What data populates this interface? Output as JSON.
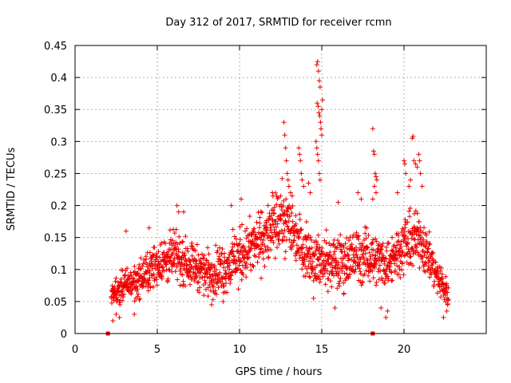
{
  "chart_data": {
    "type": "scatter",
    "title": "Day 312 of 2017, SRMTID for receiver rcmn",
    "xlabel": "GPS time / hours",
    "ylabel": "SRMTID / TECUs",
    "xlim": [
      0,
      25
    ],
    "ylim": [
      0,
      0.45
    ],
    "x_ticks": [
      0,
      5,
      10,
      15,
      20
    ],
    "y_ticks": [
      0,
      0.05,
      0.1,
      0.15,
      0.2,
      0.25,
      0.3,
      0.35,
      0.4,
      0.45
    ],
    "x_tick_labels": [
      "0",
      "5",
      "10",
      "15",
      "20"
    ],
    "y_tick_labels": [
      "0",
      "0.05",
      "0.1",
      "0.15",
      "0.2",
      "0.25",
      "0.3",
      "0.35",
      "0.4",
      "0.45"
    ],
    "grid": true,
    "marker": "plus",
    "color": "#ee0000",
    "envelope_hours": [
      2.2,
      3,
      4,
      5,
      6,
      7,
      8,
      9,
      10,
      11,
      12,
      12.5,
      13,
      14,
      15,
      16,
      17,
      18,
      19,
      20,
      21,
      22,
      22.7
    ],
    "envelope_median": [
      0.06,
      0.075,
      0.085,
      0.11,
      0.12,
      0.11,
      0.095,
      0.1,
      0.12,
      0.14,
      0.16,
      0.18,
      0.17,
      0.13,
      0.11,
      0.11,
      0.12,
      0.12,
      0.11,
      0.14,
      0.15,
      0.09,
      0.06
    ],
    "envelope_spread": [
      0.02,
      0.025,
      0.03,
      0.035,
      0.04,
      0.035,
      0.035,
      0.04,
      0.045,
      0.045,
      0.05,
      0.05,
      0.05,
      0.04,
      0.04,
      0.045,
      0.045,
      0.04,
      0.04,
      0.045,
      0.045,
      0.03,
      0.02
    ],
    "spike_points": [
      {
        "x": 12.7,
        "y": 0.33
      },
      {
        "x": 12.75,
        "y": 0.31
      },
      {
        "x": 12.8,
        "y": 0.29
      },
      {
        "x": 12.85,
        "y": 0.27
      },
      {
        "x": 12.9,
        "y": 0.25
      },
      {
        "x": 12.95,
        "y": 0.24
      },
      {
        "x": 13.0,
        "y": 0.23
      },
      {
        "x": 13.1,
        "y": 0.22
      },
      {
        "x": 13.2,
        "y": 0.215
      },
      {
        "x": 13.6,
        "y": 0.29
      },
      {
        "x": 13.65,
        "y": 0.28
      },
      {
        "x": 13.7,
        "y": 0.27
      },
      {
        "x": 13.75,
        "y": 0.25
      },
      {
        "x": 13.8,
        "y": 0.24
      },
      {
        "x": 13.9,
        "y": 0.23
      },
      {
        "x": 14.2,
        "y": 0.235
      },
      {
        "x": 14.3,
        "y": 0.22
      },
      {
        "x": 14.7,
        "y": 0.42
      },
      {
        "x": 14.75,
        "y": 0.425
      },
      {
        "x": 14.8,
        "y": 0.41
      },
      {
        "x": 14.85,
        "y": 0.395
      },
      {
        "x": 14.9,
        "y": 0.385
      },
      {
        "x": 14.72,
        "y": 0.36
      },
      {
        "x": 14.78,
        "y": 0.355
      },
      {
        "x": 14.82,
        "y": 0.345
      },
      {
        "x": 14.88,
        "y": 0.34
      },
      {
        "x": 14.92,
        "y": 0.33
      },
      {
        "x": 14.95,
        "y": 0.32
      },
      {
        "x": 15.0,
        "y": 0.31
      },
      {
        "x": 14.65,
        "y": 0.3
      },
      {
        "x": 14.7,
        "y": 0.29
      },
      {
        "x": 14.75,
        "y": 0.28
      },
      {
        "x": 14.8,
        "y": 0.27
      },
      {
        "x": 14.85,
        "y": 0.25
      },
      {
        "x": 14.9,
        "y": 0.24
      },
      {
        "x": 15.05,
        "y": 0.365
      },
      {
        "x": 15.0,
        "y": 0.35
      },
      {
        "x": 18.1,
        "y": 0.32
      },
      {
        "x": 18.15,
        "y": 0.285
      },
      {
        "x": 18.2,
        "y": 0.28
      },
      {
        "x": 18.25,
        "y": 0.25
      },
      {
        "x": 18.3,
        "y": 0.245
      },
      {
        "x": 18.35,
        "y": 0.24
      },
      {
        "x": 18.2,
        "y": 0.23
      },
      {
        "x": 18.3,
        "y": 0.22
      },
      {
        "x": 18.1,
        "y": 0.21
      },
      {
        "x": 20.0,
        "y": 0.27
      },
      {
        "x": 20.05,
        "y": 0.265
      },
      {
        "x": 20.1,
        "y": 0.25
      },
      {
        "x": 20.5,
        "y": 0.305
      },
      {
        "x": 20.55,
        "y": 0.308
      },
      {
        "x": 20.6,
        "y": 0.27
      },
      {
        "x": 20.7,
        "y": 0.265
      },
      {
        "x": 20.8,
        "y": 0.26
      },
      {
        "x": 20.9,
        "y": 0.28
      },
      {
        "x": 20.95,
        "y": 0.27
      },
      {
        "x": 21.0,
        "y": 0.25
      },
      {
        "x": 20.4,
        "y": 0.24
      },
      {
        "x": 20.3,
        "y": 0.23
      },
      {
        "x": 21.1,
        "y": 0.23
      },
      {
        "x": 19.6,
        "y": 0.22
      },
      {
        "x": 17.2,
        "y": 0.22
      },
      {
        "x": 17.4,
        "y": 0.21
      },
      {
        "x": 16.0,
        "y": 0.205
      },
      {
        "x": 6.2,
        "y": 0.2
      },
      {
        "x": 6.3,
        "y": 0.19
      },
      {
        "x": 6.6,
        "y": 0.19
      },
      {
        "x": 4.5,
        "y": 0.165
      },
      {
        "x": 3.1,
        "y": 0.16
      },
      {
        "x": 10.1,
        "y": 0.21
      },
      {
        "x": 9.5,
        "y": 0.2
      },
      {
        "x": 12.0,
        "y": 0.22
      }
    ],
    "low_points": [
      {
        "x": 2.3,
        "y": 0.02
      },
      {
        "x": 2.5,
        "y": 0.03
      },
      {
        "x": 2.7,
        "y": 0.025
      },
      {
        "x": 3.6,
        "y": 0.03
      },
      {
        "x": 14.5,
        "y": 0.055
      },
      {
        "x": 15.8,
        "y": 0.04
      },
      {
        "x": 18.6,
        "y": 0.04
      },
      {
        "x": 18.9,
        "y": 0.025
      },
      {
        "x": 19.0,
        "y": 0.035
      },
      {
        "x": 22.4,
        "y": 0.025
      },
      {
        "x": 22.6,
        "y": 0.035
      },
      {
        "x": 8.3,
        "y": 0.045
      },
      {
        "x": 9.0,
        "y": 0.05
      }
    ],
    "zero_markers": [
      {
        "x": 2.0,
        "y": 0
      },
      {
        "x": 18.1,
        "y": 0
      }
    ]
  }
}
